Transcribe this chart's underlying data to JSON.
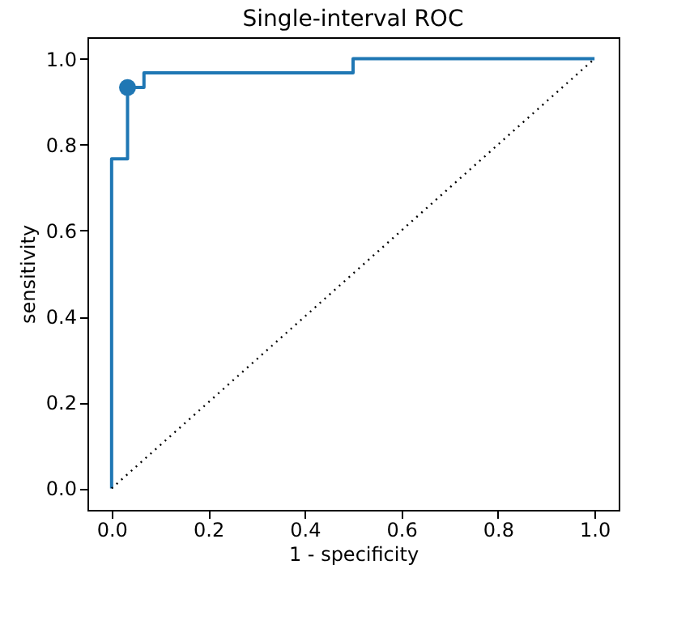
{
  "chart_data": {
    "type": "line",
    "title": "Single-interval ROC",
    "xlabel": "1 - specificity",
    "ylabel": "sensitivity",
    "xlim": [
      -0.05,
      1.05
    ],
    "ylim": [
      -0.05,
      1.05
    ],
    "xticks": [
      {
        "value": 0,
        "label": "0.0"
      },
      {
        "value": 0.2,
        "label": "0.2"
      },
      {
        "value": 0.4,
        "label": "0.4"
      },
      {
        "value": 0.6,
        "label": "0.6"
      },
      {
        "value": 0.8,
        "label": "0.8"
      },
      {
        "value": 1,
        "label": "1.0"
      }
    ],
    "yticks": [
      {
        "value": 0,
        "label": "0.0"
      },
      {
        "value": 0.2,
        "label": "0.2"
      },
      {
        "value": 0.4,
        "label": "0.4"
      },
      {
        "value": 0.6,
        "label": "0.6"
      },
      {
        "value": 0.8,
        "label": "0.8"
      },
      {
        "value": 1,
        "label": "1.0"
      }
    ],
    "grid": false,
    "series": [
      {
        "color": "#1f77b4",
        "line_style": "solid",
        "x": [
          0,
          0,
          0.033,
          0.033,
          0.067,
          0.067,
          0.5,
          0.5,
          1
        ],
        "values": [
          0,
          0.767,
          0.767,
          0.933,
          0.933,
          0.967,
          0.967,
          1,
          1
        ]
      },
      {
        "color": "#000000",
        "line_style": "dotted",
        "x": [
          0,
          1
        ],
        "values": [
          0,
          1
        ]
      },
      {
        "type": "scatter",
        "color": "#1f77b4",
        "marker": "circle",
        "x": [
          0.033
        ],
        "values": [
          0.933
        ]
      }
    ]
  }
}
